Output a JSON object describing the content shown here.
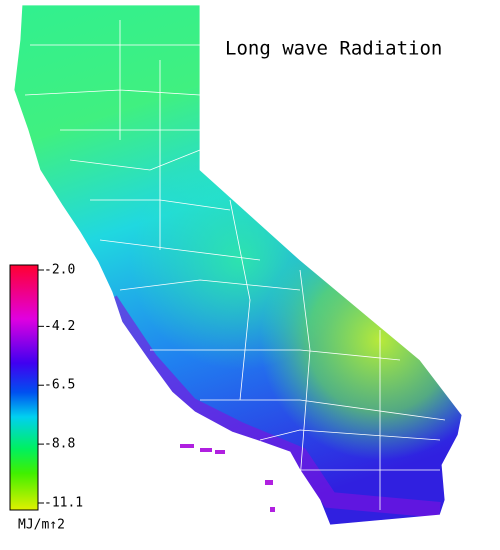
{
  "title": "Long wave Radiation",
  "colorbar": {
    "ticks": [
      {
        "value": -2.0,
        "label": "-2.0"
      },
      {
        "value": -4.2,
        "label": "-4.2"
      },
      {
        "value": -6.5,
        "label": "-6.5"
      },
      {
        "value": -8.8,
        "label": "-8.8"
      },
      {
        "value": -11.1,
        "label": "-11.1"
      }
    ],
    "unit": "MJ/m↑2"
  }
}
